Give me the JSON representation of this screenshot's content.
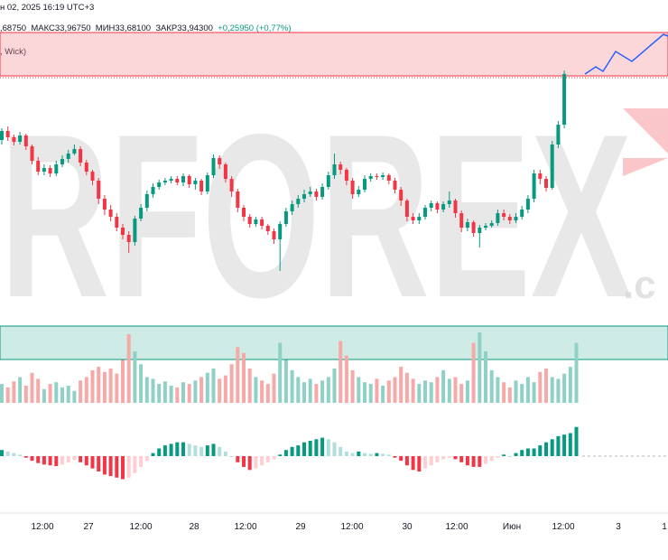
{
  "header": {
    "date_line": "н 02, 2025 16:19 UTC+3",
    "open_fragment": ",68750",
    "high": "МАКС33,96750",
    "low": "МИН33,68100",
    "close": "ЗАКР33,94300",
    "change": "+0,25950 (+0,77%)"
  },
  "indicator": {
    "label_fragment": ", Wick)"
  },
  "watermark": {
    "text": "RFOREX",
    "suffix": ".c"
  },
  "chart_data": {
    "type": "candlestick",
    "title": "",
    "x_labels": [
      "12:00",
      "27",
      "12:00",
      "28",
      "12:00",
      "29",
      "12:00",
      "30",
      "12:00",
      "Июн",
      "12:00",
      "3",
      "1"
    ],
    "resistance_zone": "upper red band",
    "support_zone": "lower green band",
    "colors": {
      "up": "#089981",
      "down": "#f23645",
      "up_vol": "#8fd1c6",
      "down_vol": "#f7a9a7",
      "forecast": "#2962ff"
    },
    "grid": false,
    "candles": [
      {
        "o": 185,
        "c": 195,
        "h": 198,
        "l": 180
      },
      {
        "o": 195,
        "c": 188,
        "h": 200,
        "l": 184
      },
      {
        "o": 188,
        "c": 183,
        "h": 191,
        "l": 179
      },
      {
        "o": 183,
        "c": 190,
        "h": 194,
        "l": 180
      },
      {
        "o": 190,
        "c": 178,
        "h": 192,
        "l": 174
      },
      {
        "o": 178,
        "c": 162,
        "h": 180,
        "l": 158
      },
      {
        "o": 162,
        "c": 150,
        "h": 166,
        "l": 146
      },
      {
        "o": 150,
        "c": 154,
        "h": 158,
        "l": 146
      },
      {
        "o": 154,
        "c": 148,
        "h": 157,
        "l": 144
      },
      {
        "o": 148,
        "c": 158,
        "h": 162,
        "l": 145
      },
      {
        "o": 158,
        "c": 164,
        "h": 168,
        "l": 155
      },
      {
        "o": 164,
        "c": 170,
        "h": 174,
        "l": 160
      },
      {
        "o": 170,
        "c": 175,
        "h": 180,
        "l": 168
      },
      {
        "o": 175,
        "c": 160,
        "h": 178,
        "l": 156
      },
      {
        "o": 160,
        "c": 150,
        "h": 163,
        "l": 146
      },
      {
        "o": 150,
        "c": 140,
        "h": 152,
        "l": 135
      },
      {
        "o": 140,
        "c": 120,
        "h": 143,
        "l": 114
      },
      {
        "o": 120,
        "c": 108,
        "h": 124,
        "l": 102
      },
      {
        "o": 108,
        "c": 100,
        "h": 113,
        "l": 95
      },
      {
        "o": 100,
        "c": 88,
        "h": 104,
        "l": 84
      },
      {
        "o": 88,
        "c": 80,
        "h": 92,
        "l": 75
      },
      {
        "o": 80,
        "c": 72,
        "h": 84,
        "l": 60
      },
      {
        "o": 72,
        "c": 98,
        "h": 101,
        "l": 68
      },
      {
        "o": 98,
        "c": 110,
        "h": 114,
        "l": 95
      },
      {
        "o": 110,
        "c": 125,
        "h": 129,
        "l": 106
      },
      {
        "o": 125,
        "c": 133,
        "h": 137,
        "l": 121
      },
      {
        "o": 133,
        "c": 138,
        "h": 141,
        "l": 130
      },
      {
        "o": 138,
        "c": 140,
        "h": 143,
        "l": 135
      },
      {
        "o": 140,
        "c": 142,
        "h": 145,
        "l": 137
      },
      {
        "o": 142,
        "c": 138,
        "h": 145,
        "l": 135
      },
      {
        "o": 138,
        "c": 145,
        "h": 148,
        "l": 134
      },
      {
        "o": 145,
        "c": 136,
        "h": 147,
        "l": 132
      },
      {
        "o": 136,
        "c": 140,
        "h": 143,
        "l": 130
      },
      {
        "o": 140,
        "c": 128,
        "h": 142,
        "l": 124
      },
      {
        "o": 128,
        "c": 146,
        "h": 149,
        "l": 125
      },
      {
        "o": 146,
        "c": 165,
        "h": 169,
        "l": 143
      },
      {
        "o": 165,
        "c": 158,
        "h": 168,
        "l": 153
      },
      {
        "o": 158,
        "c": 142,
        "h": 160,
        "l": 138
      },
      {
        "o": 142,
        "c": 128,
        "h": 145,
        "l": 122
      },
      {
        "o": 128,
        "c": 110,
        "h": 131,
        "l": 105
      },
      {
        "o": 110,
        "c": 100,
        "h": 113,
        "l": 95
      },
      {
        "o": 100,
        "c": 92,
        "h": 103,
        "l": 88
      },
      {
        "o": 92,
        "c": 97,
        "h": 100,
        "l": 89
      },
      {
        "o": 97,
        "c": 90,
        "h": 100,
        "l": 86
      },
      {
        "o": 90,
        "c": 84,
        "h": 92,
        "l": 80
      },
      {
        "o": 84,
        "c": 75,
        "h": 87,
        "l": 70
      },
      {
        "o": 75,
        "c": 92,
        "h": 95,
        "l": 40
      },
      {
        "o": 92,
        "c": 106,
        "h": 110,
        "l": 89
      },
      {
        "o": 106,
        "c": 114,
        "h": 118,
        "l": 102
      },
      {
        "o": 114,
        "c": 120,
        "h": 124,
        "l": 110
      },
      {
        "o": 120,
        "c": 125,
        "h": 130,
        "l": 116
      },
      {
        "o": 125,
        "c": 128,
        "h": 133,
        "l": 122
      },
      {
        "o": 128,
        "c": 122,
        "h": 131,
        "l": 118
      },
      {
        "o": 122,
        "c": 133,
        "h": 137,
        "l": 119
      },
      {
        "o": 133,
        "c": 146,
        "h": 150,
        "l": 130
      },
      {
        "o": 146,
        "c": 158,
        "h": 170,
        "l": 142
      },
      {
        "o": 158,
        "c": 152,
        "h": 161,
        "l": 147
      },
      {
        "o": 152,
        "c": 140,
        "h": 154,
        "l": 135
      },
      {
        "o": 140,
        "c": 125,
        "h": 143,
        "l": 120
      },
      {
        "o": 125,
        "c": 130,
        "h": 134,
        "l": 122
      },
      {
        "o": 130,
        "c": 142,
        "h": 146,
        "l": 127
      },
      {
        "o": 142,
        "c": 145,
        "h": 148,
        "l": 139
      },
      {
        "o": 145,
        "c": 144,
        "h": 148,
        "l": 141
      },
      {
        "o": 144,
        "c": 146,
        "h": 149,
        "l": 141
      },
      {
        "o": 146,
        "c": 140,
        "h": 148,
        "l": 136
      },
      {
        "o": 140,
        "c": 130,
        "h": 143,
        "l": 126
      },
      {
        "o": 130,
        "c": 118,
        "h": 133,
        "l": 112
      },
      {
        "o": 118,
        "c": 100,
        "h": 120,
        "l": 95
      },
      {
        "o": 100,
        "c": 96,
        "h": 104,
        "l": 92
      },
      {
        "o": 96,
        "c": 100,
        "h": 104,
        "l": 92
      },
      {
        "o": 100,
        "c": 110,
        "h": 113,
        "l": 97
      },
      {
        "o": 110,
        "c": 115,
        "h": 118,
        "l": 106
      },
      {
        "o": 115,
        "c": 108,
        "h": 117,
        "l": 104
      },
      {
        "o": 108,
        "c": 114,
        "h": 117,
        "l": 105
      },
      {
        "o": 114,
        "c": 118,
        "h": 128,
        "l": 110
      },
      {
        "o": 118,
        "c": 104,
        "h": 120,
        "l": 99
      },
      {
        "o": 104,
        "c": 88,
        "h": 107,
        "l": 83
      },
      {
        "o": 88,
        "c": 94,
        "h": 98,
        "l": 84
      },
      {
        "o": 94,
        "c": 82,
        "h": 96,
        "l": 78
      },
      {
        "o": 82,
        "c": 88,
        "h": 91,
        "l": 66
      },
      {
        "o": 88,
        "c": 90,
        "h": 93,
        "l": 85
      },
      {
        "o": 90,
        "c": 93,
        "h": 96,
        "l": 88
      },
      {
        "o": 93,
        "c": 104,
        "h": 108,
        "l": 90
      },
      {
        "o": 104,
        "c": 100,
        "h": 108,
        "l": 96
      },
      {
        "o": 100,
        "c": 96,
        "h": 103,
        "l": 92
      },
      {
        "o": 96,
        "c": 100,
        "h": 104,
        "l": 93
      },
      {
        "o": 100,
        "c": 108,
        "h": 112,
        "l": 97
      },
      {
        "o": 108,
        "c": 120,
        "h": 124,
        "l": 104
      },
      {
        "o": 120,
        "c": 148,
        "h": 152,
        "l": 116
      },
      {
        "o": 148,
        "c": 142,
        "h": 152,
        "l": 136
      },
      {
        "o": 142,
        "c": 132,
        "h": 145,
        "l": 128
      },
      {
        "o": 132,
        "c": 180,
        "h": 184,
        "l": 130
      },
      {
        "o": 180,
        "c": 202,
        "h": 206,
        "l": 176
      },
      {
        "o": 202,
        "c": 258,
        "h": 262,
        "l": 198
      }
    ],
    "volume": [
      22,
      18,
      25,
      30,
      20,
      35,
      28,
      16,
      22,
      24,
      18,
      20,
      14,
      26,
      30,
      38,
      42,
      36,
      40,
      34,
      50,
      80,
      60,
      45,
      30,
      28,
      22,
      25,
      20,
      18,
      24,
      22,
      26,
      30,
      35,
      40,
      28,
      32,
      45,
      65,
      58,
      40,
      30,
      26,
      22,
      34,
      70,
      50,
      38,
      30,
      24,
      28,
      22,
      26,
      30,
      40,
      72,
      55,
      38,
      30,
      24,
      22,
      28,
      20,
      26,
      30,
      42,
      35,
      28,
      22,
      26,
      24,
      30,
      38,
      28,
      30,
      22,
      26,
      70,
      82,
      60,
      38,
      30,
      24,
      18,
      26,
      22,
      30,
      24,
      36,
      40,
      30,
      28,
      34,
      42,
      70
    ],
    "oscillator": [
      8,
      6,
      4,
      2,
      -2,
      -6,
      -9,
      -11,
      -12,
      -13,
      -11,
      -8,
      -5,
      -8,
      -12,
      -16,
      -20,
      -24,
      -26,
      -28,
      -30,
      -28,
      -22,
      -14,
      -6,
      4,
      10,
      14,
      16,
      18,
      18,
      16,
      14,
      12,
      14,
      16,
      12,
      6,
      0,
      -8,
      -14,
      -18,
      -16,
      -12,
      -8,
      -4,
      2,
      8,
      12,
      14,
      18,
      20,
      22,
      24,
      22,
      18,
      12,
      6,
      4,
      6,
      4,
      3,
      4,
      3,
      2,
      -2,
      -6,
      -12,
      -18,
      -20,
      -16,
      -12,
      -8,
      -4,
      -2,
      -4,
      -8,
      -12,
      -14,
      -14,
      -10,
      -6,
      -2,
      2,
      0,
      4,
      8,
      10,
      10,
      14,
      18,
      22,
      26,
      28,
      30,
      38
    ]
  }
}
